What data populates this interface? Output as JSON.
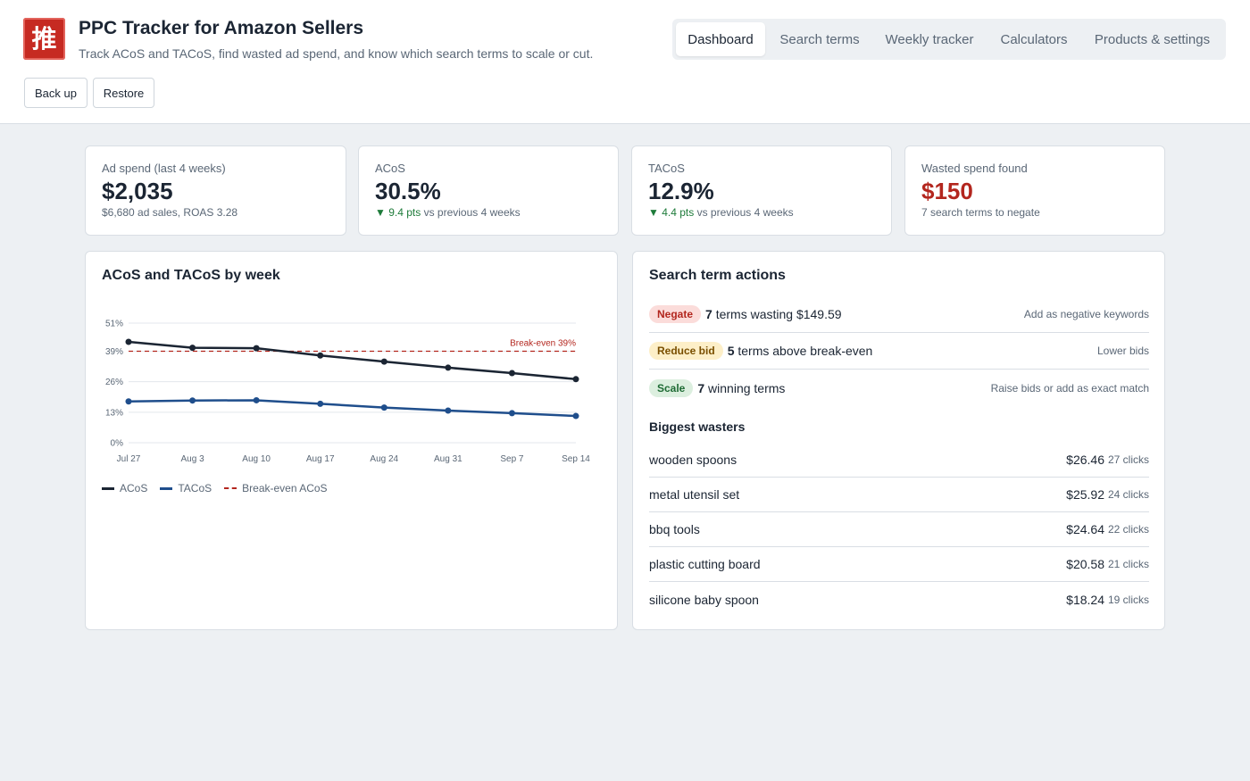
{
  "app": {
    "logo_char": "推",
    "title": "PPC Tracker for Amazon Sellers",
    "subtitle": "Track ACoS and TACoS, find wasted ad spend, and know which search terms to scale or cut.",
    "backup_label": "Back up",
    "restore_label": "Restore"
  },
  "tabs": [
    {
      "label": "Dashboard",
      "active": true
    },
    {
      "label": "Search terms",
      "active": false
    },
    {
      "label": "Weekly tracker",
      "active": false
    },
    {
      "label": "Calculators",
      "active": false
    },
    {
      "label": "Products & settings",
      "active": false
    }
  ],
  "stats": [
    {
      "label": "Ad spend (last 4 weeks)",
      "value": "$2,035",
      "note": "$6,680 ad sales, ROAS 3.28"
    },
    {
      "label": "ACoS",
      "value": "30.5%",
      "trend": "▼ 9.4 pts",
      "note": "vs previous 4 weeks"
    },
    {
      "label": "TACoS",
      "value": "12.9%",
      "trend": "▼ 4.4 pts",
      "note": "vs previous 4 weeks"
    },
    {
      "label": "Wasted spend found",
      "value": "$150",
      "note": "7 search terms to negate"
    }
  ],
  "chart_title": "ACoS and TACoS by week",
  "chart_data": {
    "type": "line",
    "title": "ACoS and TACoS by week",
    "categories": [
      "Jul 27",
      "Aug 3",
      "Aug 10",
      "Aug 17",
      "Aug 24",
      "Aug 31",
      "Sep 7",
      "Sep 14"
    ],
    "y_ticks": [
      "0%",
      "13%",
      "26%",
      "39%",
      "51%"
    ],
    "ylim": [
      0,
      51
    ],
    "grid": true,
    "legend_placement": "bottom-left",
    "series": [
      {
        "name": "ACoS",
        "values": [
          43,
          40.5,
          40.3,
          37.2,
          34.6,
          32,
          29.7,
          27.1
        ],
        "color": "#1b2533"
      },
      {
        "name": "TACoS",
        "values": [
          17.6,
          18,
          18.1,
          16.6,
          15,
          13.7,
          12.6,
          11.4
        ],
        "color": "#1f4e8c"
      }
    ],
    "reference_line": {
      "name": "Break-even ACoS",
      "value": 39,
      "label": "Break-even 39%",
      "color": "#b3261e"
    }
  },
  "actions_title": "Search term actions",
  "actions": [
    {
      "badge": "Negate",
      "count": "7",
      "text": " terms wasting $149.59",
      "hint": "Add as negative keywords",
      "bg": "#fbdcda",
      "fg": "#b3261e"
    },
    {
      "badge": "Reduce bid",
      "count": "5",
      "text": " terms above break-even",
      "hint": "Lower bids",
      "bg": "#fdefc8",
      "fg": "#7a4f00"
    },
    {
      "badge": "Scale",
      "count": "7",
      "text": " winning terms",
      "hint": "Raise bids or add as exact match",
      "bg": "#dcefdf",
      "fg": "#1e6b34"
    }
  ],
  "wasters_title": "Biggest wasters",
  "wasters": [
    {
      "term": "wooden spoons",
      "amount": "$26.46",
      "clicks": "27 clicks"
    },
    {
      "term": "metal utensil set",
      "amount": "$25.92",
      "clicks": "24 clicks"
    },
    {
      "term": "bbq tools",
      "amount": "$24.64",
      "clicks": "22 clicks"
    },
    {
      "term": "plastic cutting board",
      "amount": "$20.58",
      "clicks": "21 clicks"
    },
    {
      "term": "silicone baby spoon",
      "amount": "$18.24",
      "clicks": "19 clicks"
    }
  ]
}
